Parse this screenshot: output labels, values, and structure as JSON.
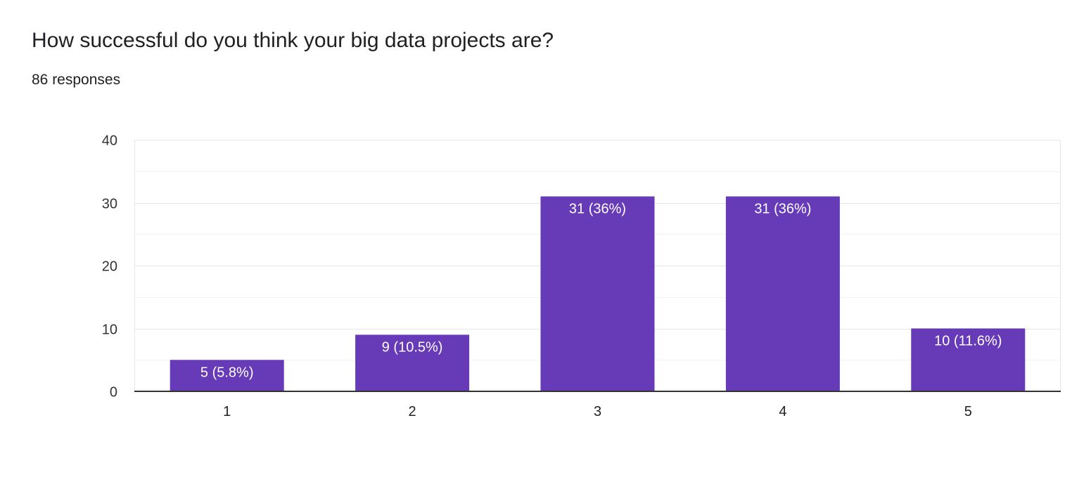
{
  "question": {
    "title": "How successful do you think your big data projects are?",
    "responses": "86 responses"
  },
  "colors": {
    "bar": "#673ab7",
    "axis": "#333333",
    "gridline": "#e6e6e6",
    "minor_gridline": "#f3f3f3"
  },
  "chart_data": {
    "type": "bar",
    "categories": [
      "1",
      "2",
      "3",
      "4",
      "5"
    ],
    "values": [
      5,
      9,
      31,
      31,
      10
    ],
    "data_labels": [
      "5 (5.8%)",
      "9 (10.5%)",
      "31 (36%)",
      "31 (36%)",
      "10 (11.6%)"
    ],
    "title": "",
    "xlabel": "",
    "ylabel": "",
    "ylim": [
      0,
      40
    ],
    "yticks": [
      0,
      10,
      20,
      30,
      40
    ],
    "grid": true,
    "legend": "none"
  }
}
